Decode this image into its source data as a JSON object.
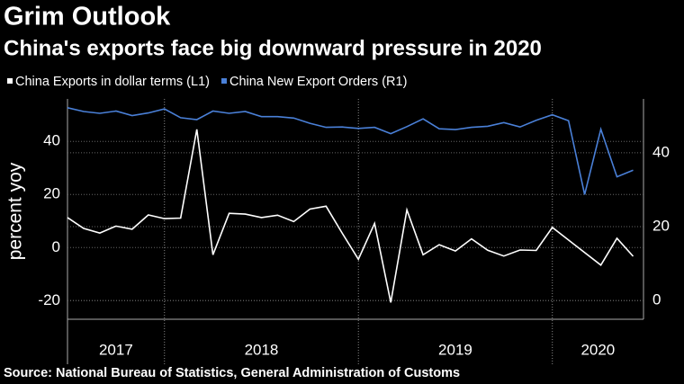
{
  "chart_data": {
    "type": "line",
    "title": "Grim Outlook",
    "subtitle": "China's exports face big downward pressure in 2020",
    "ylabel": "percent yoy",
    "source": "Source: National Bureau of Statistics, General Administration of Customs",
    "xlim": [
      2017.5,
      2020.47
    ],
    "xticks": [
      2018,
      2019,
      2020
    ],
    "x_labels": [
      {
        "value": 2017,
        "label": "2017"
      },
      {
        "value": 2018,
        "label": "2018"
      },
      {
        "value": 2019,
        "label": "2019"
      },
      {
        "value": 2020,
        "label": "2020"
      }
    ],
    "ylim": [
      -27,
      56
    ],
    "yticks": [
      -20,
      0,
      20,
      40
    ],
    "y2lim": [
      -5.1,
      54.6
    ],
    "y2ticks": [
      0,
      20,
      40
    ],
    "grid": true,
    "series": [
      {
        "name": "China Exports in dollar terms (L1)",
        "color": "#ffffff",
        "axis": "y",
        "x": [
          2017.5,
          2017.5833,
          2017.6667,
          2017.75,
          2017.8333,
          2017.9167,
          2018.0,
          2018.0833,
          2018.1667,
          2018.25,
          2018.3333,
          2018.4167,
          2018.5,
          2018.5833,
          2018.6667,
          2018.75,
          2018.8333,
          2018.9167,
          2019.0,
          2019.0833,
          2019.1667,
          2019.25,
          2019.3333,
          2019.4167,
          2019.5,
          2019.5833,
          2019.6667,
          2019.75,
          2019.8333,
          2019.9167,
          2020.0,
          2020.25,
          2020.3333,
          2020.4167
        ],
        "values": [
          11.3,
          7.2,
          5.5,
          8.1,
          6.9,
          12.3,
          10.9,
          11.1,
          44.5,
          -2.7,
          12.9,
          12.6,
          11.3,
          12.2,
          9.8,
          14.5,
          15.6,
          5.4,
          -4.4,
          9.1,
          -20.7,
          14.2,
          -2.7,
          1.1,
          -1.3,
          3.3,
          -1.0,
          -3.2,
          -0.9,
          -1.1,
          7.6,
          -6.6,
          3.5,
          -3.3
        ]
      },
      {
        "name": "China New Export Orders (R1)",
        "color": "#4a80d8",
        "axis": "y2",
        "x": [
          2017.5,
          2017.5833,
          2017.6667,
          2017.75,
          2017.8333,
          2017.9167,
          2018.0,
          2018.0833,
          2018.1667,
          2018.25,
          2018.3333,
          2018.4167,
          2018.5,
          2018.5833,
          2018.6667,
          2018.75,
          2018.8333,
          2018.9167,
          2019.0,
          2019.0833,
          2019.1667,
          2019.25,
          2019.3333,
          2019.4167,
          2019.5,
          2019.5833,
          2019.6667,
          2019.75,
          2019.8333,
          2019.9167,
          2020.0,
          2020.0833,
          2020.1667,
          2020.25,
          2020.3333,
          2020.4167
        ],
        "values": [
          52.2,
          51.2,
          50.7,
          51.3,
          50.1,
          50.8,
          51.9,
          49.5,
          49.0,
          51.3,
          50.7,
          51.2,
          49.8,
          49.8,
          49.4,
          48.0,
          46.9,
          47.0,
          46.6,
          46.9,
          45.2,
          47.1,
          49.2,
          46.5,
          46.3,
          46.9,
          47.2,
          48.2,
          47.0,
          48.8,
          50.3,
          48.7,
          28.7,
          46.4,
          33.5,
          35.3
        ]
      }
    ]
  }
}
